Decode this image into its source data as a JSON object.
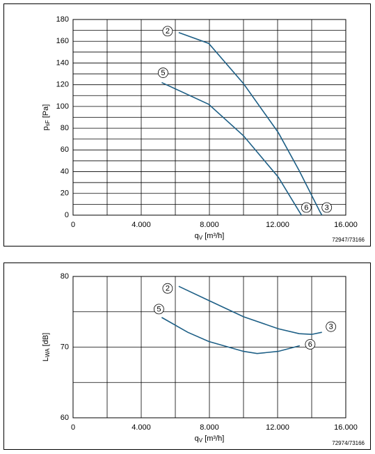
{
  "chart_data": [
    {
      "type": "line",
      "xlabel": [
        "q",
        "V",
        " [m³/h]"
      ],
      "ylabel": [
        "p",
        "sF",
        " [Pa]"
      ],
      "footnote": "72947/73166",
      "xlim": [
        0,
        16000
      ],
      "xticks": [
        0,
        {
          "value": 4000,
          "label": "4.000"
        },
        {
          "value": 8000,
          "label": "8.000"
        },
        {
          "value": 12000,
          "label": "12.000"
        },
        {
          "value": 16000,
          "label": "16.000"
        }
      ],
      "minor_xticks": [
        2000,
        6000,
        10000,
        14000
      ],
      "ylim": [
        0,
        180
      ],
      "yticks": [
        0,
        20,
        40,
        60,
        80,
        100,
        120,
        140,
        160,
        180
      ],
      "minor_yticks": [
        10,
        30,
        50,
        70,
        90,
        110,
        130,
        150,
        170
      ],
      "grid": true,
      "series": [
        {
          "color": "#1d5f86",
          "start_label": "2",
          "end_label": "3",
          "x": [
            6200,
            7960,
            10000,
            12040,
            13265,
            14490,
            14600
          ],
          "values": [
            168,
            158,
            121,
            76,
            41,
            3,
            0
          ]
        },
        {
          "color": "#1d5f86",
          "start_label": "5",
          "end_label": "6",
          "x": [
            5200,
            7960,
            10000,
            12040,
            13300,
            13400
          ],
          "values": [
            122,
            102,
            73,
            35,
            2.5,
            0
          ]
        }
      ]
    },
    {
      "type": "line",
      "xlabel": [
        "q",
        "V",
        " [m³/h]"
      ],
      "ylabel": [
        "L",
        "WA",
        " [dB]"
      ],
      "footnote": "72974/73166",
      "xlim": [
        0,
        16000
      ],
      "xticks": [
        0,
        {
          "value": 4000,
          "label": "4.000"
        },
        {
          "value": 8000,
          "label": "8.000"
        },
        {
          "value": 12000,
          "label": "12.000"
        },
        {
          "value": 16000,
          "label": "16.000"
        }
      ],
      "minor_xticks": [
        2000,
        6000,
        10000,
        14000
      ],
      "ylim": [
        60,
        80
      ],
      "yticks": [
        60,
        70,
        80
      ],
      "minor_yticks": [
        65,
        75
      ],
      "grid": true,
      "series": [
        {
          "color": "#1d5f86",
          "start_label": "2",
          "end_label": "3",
          "x": [
            6200,
            7960,
            10000,
            12040,
            13265,
            14000,
            14600
          ],
          "values": [
            78.6,
            76.6,
            74.3,
            72.6,
            71.9,
            71.8,
            72.1
          ]
        },
        {
          "color": "#1d5f86",
          "start_label": "5",
          "end_label": "6",
          "x": [
            5200,
            6730,
            7960,
            10000,
            10800,
            12040,
            13300
          ],
          "values": [
            74.2,
            72.1,
            70.8,
            69.4,
            69.1,
            69.4,
            70.2
          ]
        }
      ]
    }
  ]
}
